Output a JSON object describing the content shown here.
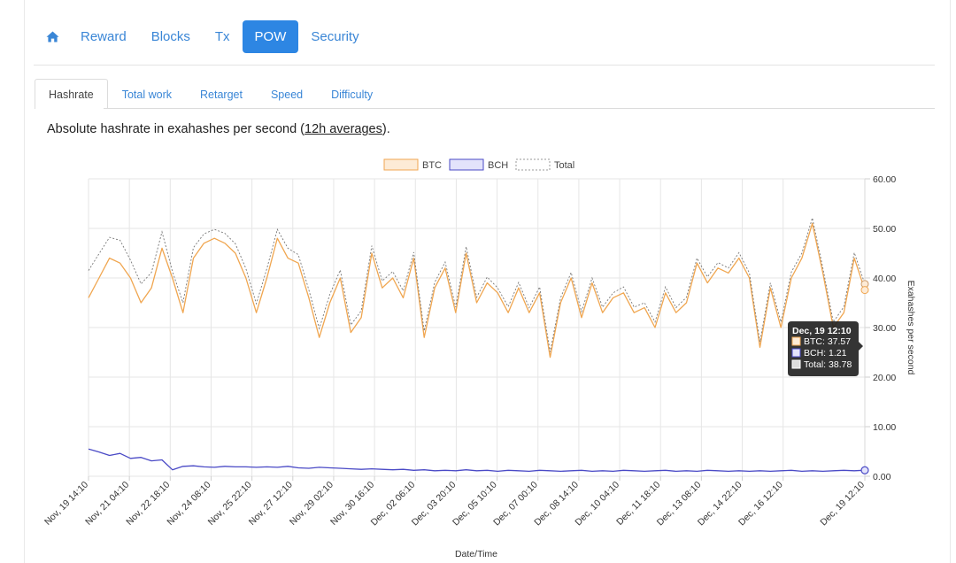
{
  "nav": {
    "home_icon": "home-icon",
    "items": [
      {
        "label": "Reward",
        "active": false
      },
      {
        "label": "Blocks",
        "active": false
      },
      {
        "label": "Tx",
        "active": false
      },
      {
        "label": "POW",
        "active": true
      },
      {
        "label": "Security",
        "active": false
      }
    ]
  },
  "subtabs": [
    {
      "label": "Hashrate",
      "active": true
    },
    {
      "label": "Total work",
      "active": false
    },
    {
      "label": "Retarget",
      "active": false
    },
    {
      "label": "Speed",
      "active": false
    },
    {
      "label": "Difficulty",
      "active": false
    }
  ],
  "description": {
    "prefix": "Absolute hashrate in exahashes per second (",
    "link": "12h averages",
    "suffix": ")."
  },
  "colors": {
    "accent": "#2d86e3",
    "btc": "#f0a650",
    "btc_fill": "#fdebd6",
    "bch": "#4a4ac6",
    "bch_fill": "#e3e3fb",
    "total": "#777777"
  },
  "chart_data": {
    "type": "line",
    "xlabel": "Date/Time",
    "ylabel": "Exahashes per second",
    "ylim": [
      0,
      60
    ],
    "y_ticks": [
      "0.00",
      "10.00",
      "20.00",
      "30.00",
      "40.00",
      "50.00",
      "60.00"
    ],
    "x_ticks": [
      "Nov, 19 14:10",
      "Nov, 21 04:10",
      "Nov, 22 18:10",
      "Nov, 24 08:10",
      "Nov, 25 22:10",
      "Nov, 27 12:10",
      "Nov, 29 02:10",
      "Nov, 30 16:10",
      "Dec, 02 06:10",
      "Dec, 03 20:10",
      "Dec, 05 10:10",
      "Dec, 07 00:10",
      "Dec, 08 14:10",
      "Dec, 10 04:10",
      "Dec, 11 18:10",
      "Dec, 13 08:10",
      "Dec, 14 22:10",
      "Dec, 16 12:10",
      "Dec, 19 12:10"
    ],
    "grid": true,
    "legend_position": "top-center",
    "series": [
      {
        "name": "BTC",
        "values": [
          36,
          40,
          44,
          43,
          40,
          35,
          38,
          46,
          40,
          33,
          44,
          47,
          48,
          47,
          45,
          40,
          33,
          40,
          48,
          44,
          43,
          36,
          28,
          35,
          40,
          29,
          32,
          45,
          38,
          40,
          36,
          44,
          28,
          38,
          42,
          33,
          45,
          35,
          39,
          37,
          33,
          38,
          33,
          37,
          24,
          35,
          40,
          32,
          39,
          33,
          36,
          37,
          33,
          34,
          30,
          37,
          33,
          35,
          43,
          39,
          42,
          41,
          44,
          40,
          26,
          38,
          30,
          40,
          44,
          51,
          41,
          30,
          33,
          44,
          37.57
        ]
      },
      {
        "name": "BCH",
        "values": [
          5.5,
          4.9,
          4.2,
          4.6,
          3.6,
          3.8,
          3.1,
          3.3,
          1.3,
          2.0,
          2.1,
          1.9,
          1.8,
          2.0,
          1.9,
          1.9,
          1.8,
          1.9,
          1.8,
          2.0,
          1.7,
          1.6,
          1.8,
          1.7,
          1.6,
          1.5,
          1.4,
          1.5,
          1.4,
          1.3,
          1.4,
          1.2,
          1.3,
          1.1,
          1.2,
          1.1,
          1.3,
          1.1,
          1.2,
          1.0,
          1.2,
          1.1,
          1.0,
          1.2,
          1.1,
          1.0,
          1.1,
          1.2,
          1.0,
          1.1,
          1.0,
          1.2,
          1.1,
          1.0,
          1.1,
          1.2,
          1.0,
          1.1,
          1.0,
          1.2,
          1.1,
          1.0,
          1.1,
          1.0,
          1.1,
          1.0,
          1.1,
          1.2,
          1.0,
          1.1,
          1.0,
          1.1,
          1.2,
          1.1,
          1.21
        ]
      },
      {
        "name": "Total",
        "values": [
          41.5,
          44.9,
          48.2,
          47.6,
          43.6,
          38.8,
          41.1,
          49.3,
          41.3,
          35.0,
          46.1,
          48.9,
          49.8,
          49.0,
          46.9,
          41.9,
          34.8,
          41.9,
          49.8,
          46.0,
          44.7,
          37.6,
          29.8,
          36.7,
          41.6,
          30.5,
          33.4,
          46.5,
          39.4,
          41.3,
          37.4,
          45.2,
          29.3,
          39.1,
          43.2,
          34.1,
          46.3,
          36.1,
          40.2,
          38.0,
          34.2,
          39.1,
          34.0,
          38.2,
          25.1,
          36.0,
          41.1,
          33.2,
          40.0,
          34.1,
          37.0,
          38.2,
          34.1,
          35.0,
          31.1,
          38.2,
          34.0,
          36.1,
          44.0,
          40.2,
          43.1,
          42.0,
          45.1,
          41.0,
          27.1,
          39.0,
          31.1,
          41.2,
          45.0,
          52.1,
          42.0,
          31.1,
          34.2,
          45.1,
          38.78
        ]
      }
    ],
    "tooltip": {
      "title": "Dec, 19 12:10",
      "lines": [
        "BTC: 37.57",
        "BCH: 1.21",
        "Total: 38.78"
      ]
    }
  }
}
